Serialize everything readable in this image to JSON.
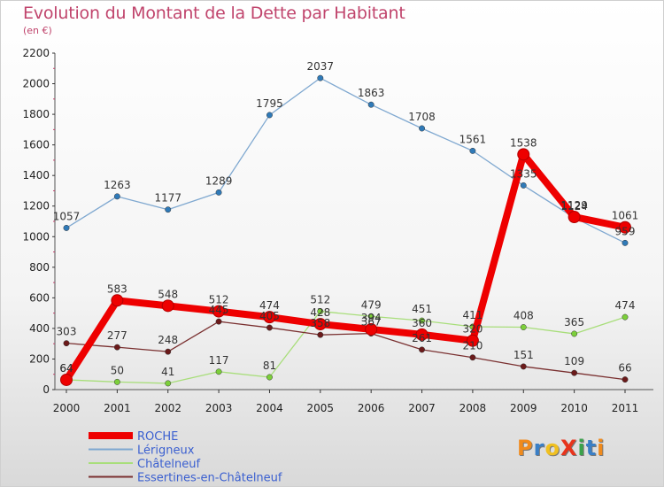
{
  "header": {
    "title": "Evolution du Montant de la Dette par Habitant",
    "subtitle": "(en €)"
  },
  "logo": {
    "text": "ProXiti",
    "colors": [
      "#f08a1c",
      "#3a7fc6",
      "#f0c020",
      "#e8341c",
      "#3aa24a",
      "#3a7fc6",
      "#f08a1c"
    ]
  },
  "chart_data": {
    "type": "line",
    "title": "Evolution du Montant de la Dette par Habitant",
    "subtitle": "(en €)",
    "xlabel": "",
    "ylabel": "",
    "ylim": [
      0,
      2200
    ],
    "yticks": [
      0,
      200,
      400,
      600,
      800,
      1000,
      1200,
      1400,
      1600,
      1800,
      2000,
      2200
    ],
    "grid": false,
    "legend_position": "bottom-left",
    "categories": [
      "2000",
      "2001",
      "2002",
      "2003",
      "2004",
      "2005",
      "2006",
      "2007",
      "2008",
      "2009",
      "2010",
      "2011"
    ],
    "series": [
      {
        "name": "Lérigneux",
        "color": "#7fa8d0",
        "marker": "#2f7ab8",
        "values": [
          1057,
          1263,
          1177,
          1289,
          1795,
          2037,
          1863,
          1708,
          1561,
          1335,
          1124,
          959
        ]
      },
      {
        "name": "Châtelneuf",
        "color": "#a8de7a",
        "marker": "#7ccf3a",
        "values": [
          64,
          50,
          41,
          117,
          81,
          512,
          479,
          451,
          411,
          408,
          365,
          474
        ]
      },
      {
        "name": "Essertines-en-Châtelneuf",
        "color": "#7a3030",
        "marker": "#6b1a1a",
        "values": [
          303,
          277,
          248,
          445,
          405,
          358,
          367,
          261,
          210,
          151,
          109,
          66
        ]
      },
      {
        "name": "ROCHE",
        "color": "#ee0000",
        "marker": "#ee0000",
        "values": [
          64,
          583,
          548,
          512,
          474,
          428,
          394,
          360,
          320,
          1538,
          1129,
          1061
        ]
      }
    ]
  }
}
